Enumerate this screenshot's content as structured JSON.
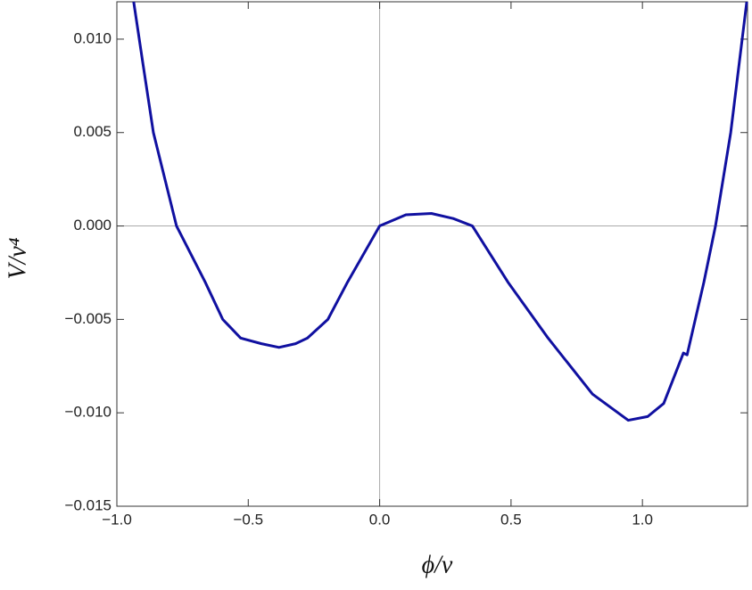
{
  "chart_data": {
    "type": "line",
    "x_label": "ϕ/ν",
    "y_label": "V/ν⁴",
    "x": [
      -0.936,
      -0.902,
      -0.861,
      -0.773,
      -0.664,
      -0.597,
      -0.529,
      -0.45,
      -0.383,
      -0.32,
      -0.275,
      -0.197,
      -0.122,
      0,
      0.1,
      0.197,
      0.28,
      0.353,
      0.488,
      0.641,
      0.81,
      0.946,
      1.02,
      1.081,
      1.156,
      1.17,
      1.234,
      1.278,
      1.336,
      1.397
    ],
    "series": [
      {
        "color": "#1010a0",
        "values": [
          0.012,
          0.0088,
          0.005,
          0,
          -0.003,
          -0.005,
          -0.006,
          -0.0063,
          -0.0065,
          -0.0063,
          -0.006,
          -0.005,
          -0.003,
          0,
          0.0006,
          0.00067,
          0.0004,
          0,
          -0.003,
          -0.006,
          -0.009,
          -0.0104,
          -0.0102,
          -0.0095,
          -0.0068,
          -0.0069,
          -0.003,
          0,
          0.005,
          0.012
        ]
      }
    ],
    "xlim": [
      -1,
      1.4
    ],
    "ylim": [
      -0.015,
      0.012
    ],
    "xticks": [
      {
        "value": -1,
        "label": "−1.0"
      },
      {
        "value": -0.5,
        "label": "−0.5"
      },
      {
        "value": 0,
        "label": "0.0"
      },
      {
        "value": 0.5,
        "label": "0.5"
      },
      {
        "value": 1,
        "label": "1.0"
      }
    ],
    "yticks": [
      {
        "value": -0.015,
        "label": "−0.015"
      },
      {
        "value": -0.01,
        "label": "−0.010"
      },
      {
        "value": -0.005,
        "label": "−0.005"
      },
      {
        "value": 0,
        "label": "0.000"
      },
      {
        "value": 0.005,
        "label": "0.005"
      },
      {
        "value": 0.01,
        "label": "0.010"
      }
    ],
    "axes_lines": true
  }
}
